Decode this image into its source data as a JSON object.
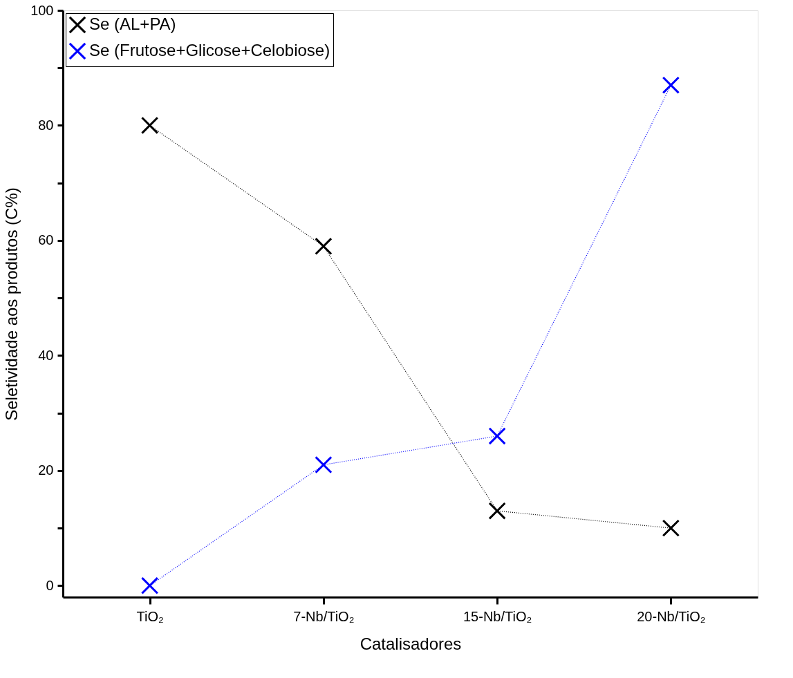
{
  "chart_data": {
    "type": "line",
    "xlabel": "Catalisadores",
    "ylabel": "Seletividade aos produtos (C%)",
    "categories": [
      "TiO₂",
      "7-Nb/TiO₂",
      "15-Nb/TiO₂",
      "20-Nb/TiO₂"
    ],
    "series": [
      {
        "name": "Se (AL+PA)",
        "color": "#000000",
        "values": [
          80,
          59,
          13,
          10
        ]
      },
      {
        "name": "Se (Frutose+Glicose+Celobiose)",
        "color": "#0000ff",
        "values": [
          0,
          21,
          26,
          87
        ]
      }
    ],
    "ylim": [
      -2,
      100
    ],
    "yticks": [
      0,
      {
        "value": 10,
        "label": null
      },
      20,
      {
        "value": 30,
        "label": null
      },
      40,
      {
        "value": 50,
        "label": null
      },
      60,
      {
        "value": 70,
        "label": null
      },
      80,
      {
        "value": 90,
        "label": null
      },
      100
    ],
    "marker": "cross",
    "line_style": "dotted",
    "legend": "top left",
    "grid": false
  }
}
